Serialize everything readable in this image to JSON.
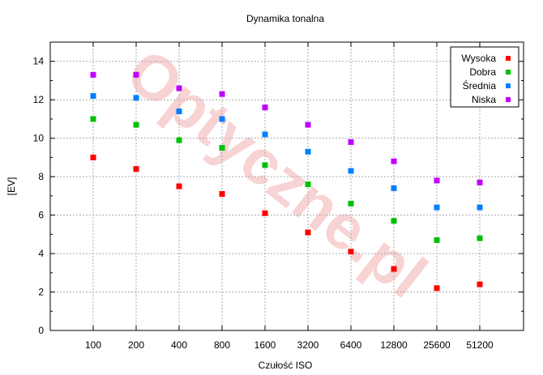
{
  "watermark": "Optyczne.pl",
  "chart_data": {
    "type": "scatter",
    "title": "Dynamika tonalna",
    "xlabel": "Czułość ISO",
    "ylabel": "[EV]",
    "categories": [
      "100",
      "200",
      "400",
      "800",
      "1600",
      "3200",
      "6400",
      "12800",
      "25600",
      "51200"
    ],
    "ylim": [
      0,
      15
    ],
    "yticks": [
      0,
      2,
      4,
      6,
      8,
      10,
      12,
      14
    ],
    "grid": true,
    "legend_position": "top-right",
    "series": [
      {
        "name": "Wysoka",
        "color": "#ff0000",
        "values": [
          9.0,
          8.4,
          7.5,
          7.1,
          6.1,
          5.1,
          4.1,
          3.2,
          2.2,
          2.4
        ]
      },
      {
        "name": "Dobra",
        "color": "#00c000",
        "values": [
          11.0,
          10.7,
          9.9,
          9.5,
          8.6,
          7.6,
          6.6,
          5.7,
          4.7,
          4.8
        ]
      },
      {
        "name": "Średnia",
        "color": "#0080ff",
        "values": [
          12.2,
          12.1,
          11.4,
          11.0,
          10.2,
          9.3,
          8.3,
          7.4,
          6.4,
          6.4
        ]
      },
      {
        "name": "Niska",
        "color": "#c000ff",
        "values": [
          13.3,
          13.3,
          12.6,
          12.3,
          11.6,
          10.7,
          9.8,
          8.8,
          7.8,
          7.7
        ]
      }
    ]
  }
}
